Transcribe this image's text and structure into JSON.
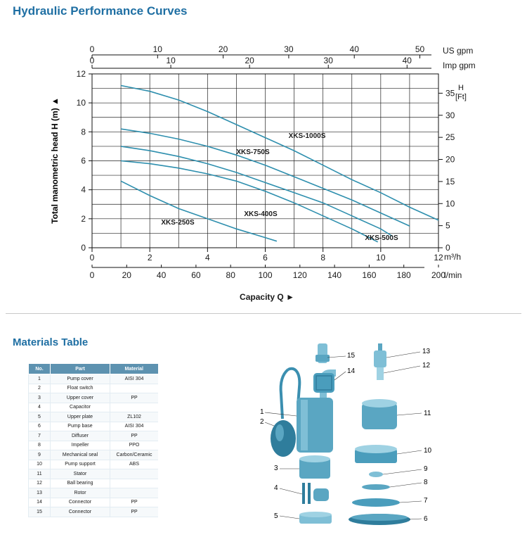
{
  "titles": {
    "curves": "Hydraulic Performance Curves",
    "materials": "Materials Table"
  },
  "chart_data": {
    "type": "line",
    "title": "Hydraulic Performance Curves",
    "xlabel": "Capacity Q",
    "ylabel": "Total manometric head H (m)",
    "x_unit_m3h": "m³/h",
    "x_unit_lmin": "l/min",
    "top_unit_us": "US gpm",
    "top_unit_imp": "Imp gpm",
    "right_unit": "H [Ft]",
    "right_unit_h": "H",
    "right_unit_ft": "[Ft]",
    "xlim": [
      0,
      12
    ],
    "ylim": [
      0,
      12
    ],
    "ticks_m3h": [
      "0",
      "2",
      "4",
      "6",
      "8",
      "10",
      "12"
    ],
    "ticks_lmin": [
      "0",
      "20",
      "40",
      "60",
      "80",
      "100",
      "120",
      "140",
      "160",
      "180",
      "200"
    ],
    "ticks_usgpm": [
      "0",
      "10",
      "20",
      "30",
      "40",
      "50"
    ],
    "ticks_impgpm": [
      "0",
      "10",
      "20",
      "30",
      "40"
    ],
    "ticks_h_m": [
      "0",
      "2",
      "4",
      "6",
      "8",
      "10",
      "12"
    ],
    "ticks_h_ft": [
      "0",
      "5",
      "10",
      "15",
      "20",
      "25",
      "30",
      "35"
    ],
    "grid": true,
    "series": [
      {
        "name": "XKS-250S",
        "x": [
          1.0,
          2.0,
          3.0,
          4.0,
          5.0,
          6.0,
          6.4
        ],
        "y": [
          4.6,
          3.6,
          2.7,
          2.0,
          1.3,
          0.7,
          0.45
        ]
      },
      {
        "name": "XKS-400S",
        "x": [
          1.0,
          2.0,
          3.0,
          4.0,
          5.0,
          6.0,
          7.0,
          8.0,
          9.0,
          9.9
        ],
        "y": [
          6.0,
          5.8,
          5.5,
          5.1,
          4.6,
          3.9,
          3.1,
          2.2,
          1.3,
          0.4
        ]
      },
      {
        "name": "XKS-500S",
        "x": [
          1.0,
          2.0,
          3.0,
          4.0,
          5.0,
          6.0,
          7.0,
          8.0,
          9.0,
          10.0,
          10.4
        ],
        "y": [
          7.0,
          6.7,
          6.3,
          5.8,
          5.2,
          4.5,
          3.8,
          3.1,
          2.2,
          1.3,
          0.8
        ]
      },
      {
        "name": "XKS-750S",
        "x": [
          1.0,
          2.0,
          3.0,
          4.0,
          5.0,
          6.0,
          7.0,
          8.0,
          9.0,
          10.0,
          11.0
        ],
        "y": [
          8.2,
          7.9,
          7.5,
          7.0,
          6.4,
          5.7,
          4.9,
          4.1,
          3.3,
          2.4,
          1.5
        ]
      },
      {
        "name": "XKS-1000S",
        "x": [
          1.0,
          2.0,
          3.0,
          4.0,
          5.0,
          6.0,
          7.0,
          8.0,
          9.0,
          10.0,
          11.0,
          12.0
        ],
        "y": [
          11.2,
          10.8,
          10.2,
          9.4,
          8.5,
          7.6,
          6.7,
          5.7,
          4.7,
          3.8,
          2.8,
          1.9
        ]
      }
    ]
  },
  "materials": {
    "headers": {
      "no": "No.",
      "part": "Part",
      "material": "Material"
    },
    "rows": [
      {
        "no": "1",
        "part": "Pump cover",
        "material": "AISI 304"
      },
      {
        "no": "2",
        "part": "Float switch",
        "material": ""
      },
      {
        "no": "3",
        "part": "Upper cover",
        "material": "PP"
      },
      {
        "no": "4",
        "part": "Capacitor",
        "material": ""
      },
      {
        "no": "5",
        "part": "Upper plate",
        "material": "ZL102"
      },
      {
        "no": "6",
        "part": "Pump base",
        "material": "AISI 304"
      },
      {
        "no": "7",
        "part": "Diffuser",
        "material": "PP"
      },
      {
        "no": "8",
        "part": "Impeller",
        "material": "PPO"
      },
      {
        "no": "9",
        "part": "Mechanical seal",
        "material": "Carbon/Ceramic"
      },
      {
        "no": "10",
        "part": "Pump support",
        "material": "ABS"
      },
      {
        "no": "11",
        "part": "Stator",
        "material": ""
      },
      {
        "no": "12",
        "part": "Ball bearing",
        "material": ""
      },
      {
        "no": "13",
        "part": "Rotor",
        "material": ""
      },
      {
        "no": "14",
        "part": "Connector",
        "material": "PP"
      },
      {
        "no": "15",
        "part": "Connector",
        "material": "PP"
      }
    ]
  },
  "diagram": {
    "callouts": [
      "1",
      "2",
      "3",
      "4",
      "5",
      "6",
      "7",
      "8",
      "9",
      "10",
      "11",
      "12",
      "13",
      "14",
      "15"
    ],
    "colors": {
      "body": "#5aa6c2",
      "dark": "#2f7d9c",
      "light": "#9fd2e3"
    }
  },
  "colors": {
    "curve": "#2e8fae",
    "title": "#1f6fa3",
    "header": "#5d92b0"
  }
}
